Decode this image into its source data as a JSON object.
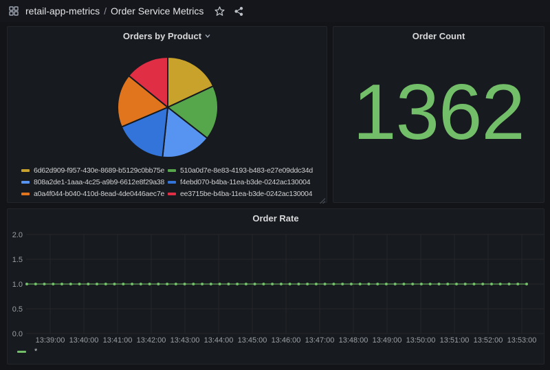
{
  "nav": {
    "folder": "retail-app-metrics",
    "separator": "/",
    "title": "Order Service Metrics",
    "icons": [
      "apps-grid-icon",
      "star-icon",
      "share-alt-icon"
    ]
  },
  "theme": {
    "panel_bg": "#171a1e",
    "grid_color": "#24262b",
    "tick_color": "#9aa0a6",
    "green": "#73BF69"
  },
  "chart_data": [
    {
      "type": "pie",
      "title": "Orders by Product",
      "legend_position": "bottom",
      "slices": [
        {
          "label": "6d62d909-f957-430e-8689-b5129c0bb75e",
          "color": "#C9A22B",
          "angle_deg": 65
        },
        {
          "label": "510a0d7e-8e83-4193-b483-e27e09ddc34d",
          "color": "#56A64B",
          "angle_deg": 63
        },
        {
          "label": "808a2de1-1aaa-4c25-a9b9-6612e8f29a38",
          "color": "#5794F2",
          "angle_deg": 58
        },
        {
          "label": "f4ebd070-b4ba-11ea-b3de-0242ac130004",
          "color": "#3274D9",
          "angle_deg": 61
        },
        {
          "label": "a0a4f044-b040-410d-8ead-4de0446aec7e",
          "color": "#E0751D",
          "angle_deg": 62
        },
        {
          "label": "ee3715be-b4ba-11ea-b3de-0242ac130004",
          "color": "#E02F44",
          "angle_deg": 51
        }
      ]
    },
    {
      "type": "stat",
      "title": "Order Count",
      "value": "1362",
      "color": "#73BF69"
    },
    {
      "type": "line",
      "title": "Order Rate",
      "series": [
        {
          "name": "*",
          "color": "#73BF69",
          "constant_value": 1.0
        }
      ],
      "x_ticks": [
        "13:39:00",
        "13:40:00",
        "13:41:00",
        "13:42:00",
        "13:43:00",
        "13:44:00",
        "13:45:00",
        "13:46:00",
        "13:47:00",
        "13:48:00",
        "13:49:00",
        "13:50:00",
        "13:51:00",
        "13:52:00",
        "13:53:00"
      ],
      "y_ticks": [
        "2.0",
        "1.5",
        "1.0",
        "0.5",
        "0.0"
      ],
      "ylim": [
        0,
        2.0
      ],
      "grid": true,
      "legend_position": "bottom-left",
      "point_count": 58
    }
  ]
}
